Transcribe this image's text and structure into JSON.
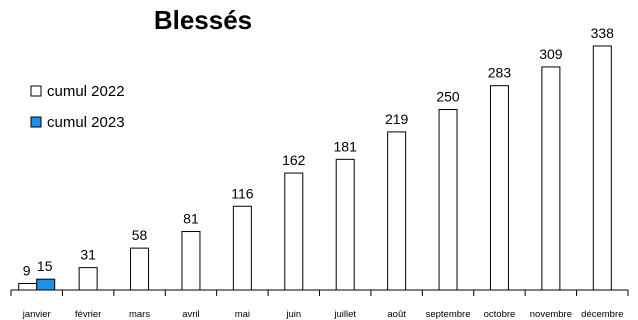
{
  "chart_data": {
    "type": "bar",
    "title": "Blessés",
    "categories": [
      "janvier",
      "février",
      "mars",
      "avril",
      "mai",
      "juin",
      "juillet",
      "août",
      "septembre",
      "octobre",
      "novembre",
      "décembre"
    ],
    "series": [
      {
        "name": "cumul 2022",
        "color": "#ffffff",
        "values": [
          9,
          31,
          58,
          81,
          116,
          162,
          181,
          219,
          250,
          283,
          309,
          338
        ]
      },
      {
        "name": "cumul 2023",
        "color": "#1e90e8",
        "values": [
          15,
          null,
          null,
          null,
          null,
          null,
          null,
          null,
          null,
          null,
          null,
          null
        ]
      }
    ],
    "ylim": [
      0,
      338
    ],
    "grid": false,
    "legend_position": "left",
    "data_labels": true
  }
}
